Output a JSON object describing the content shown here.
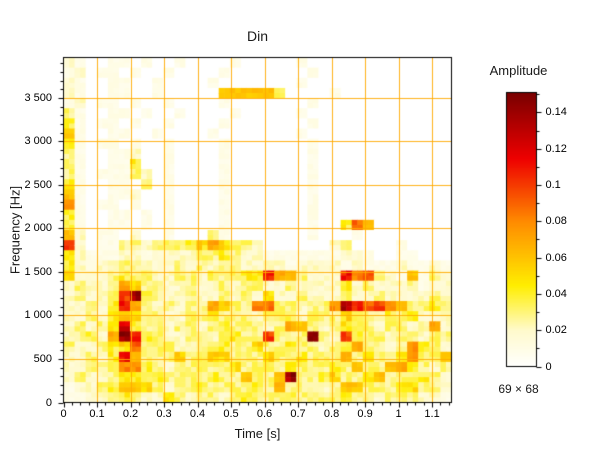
{
  "chart_data": {
    "type": "heatmap",
    "title": "Din",
    "xlabel": "Time [s]",
    "ylabel": "Frequency [Hz]",
    "xlim": [
      0,
      1.158
    ],
    "ylim": [
      0,
      3965
    ],
    "grid": {
      "on": true,
      "color": "#ffaa00"
    },
    "x_axis": {
      "major_tick_values": [
        0,
        0.1,
        0.2,
        0.3,
        0.4,
        0.5,
        0.6,
        0.7,
        0.8,
        0.9,
        1.0,
        1.1
      ],
      "major_tick_labels": [
        "0",
        "0.1",
        "0.2",
        "0.3",
        "0.4",
        "0.5",
        "0.6",
        "0.7",
        "0.8",
        "0.9",
        "1",
        "1.1"
      ],
      "minor_tick_step": 0.025
    },
    "y_axis": {
      "major_tick_values": [
        0,
        500,
        1000,
        1500,
        2000,
        2500,
        3000,
        3500
      ],
      "major_tick_labels": [
        "0",
        "500",
        "1 000",
        "1 500",
        "2 000",
        "2 500",
        "3 000",
        "3 500"
      ],
      "minor_tick_step": 100
    },
    "colorbar": {
      "label": "Amplitude",
      "min": 0,
      "max": 0.151,
      "major_tick_values": [
        0,
        0.02,
        0.04,
        0.06,
        0.08,
        0.1,
        0.12,
        0.14
      ],
      "major_tick_labels": [
        "0",
        "0.02",
        "0.04",
        "0.06",
        "0.08",
        "0.1",
        "0.12",
        "0.14"
      ],
      "minor_tick_step": 0.01
    },
    "colormap_stops": [
      [
        0.0,
        "#ffffff"
      ],
      [
        0.02,
        "#fffacd"
      ],
      [
        0.045,
        "#ffee00"
      ],
      [
        0.08,
        "#ff8c00"
      ],
      [
        0.115,
        "#ee0000"
      ],
      [
        0.151,
        "#7a0000"
      ]
    ],
    "resolution_label": "69 × 68",
    "matrix": {
      "note": "amplitude grid downsampled to 34 rows x 35 cols; hex digit x 0.01 = amplitude; rows listed top (high frequency) to bottom (0 Hz)",
      "rows": 34,
      "cols": 35,
      "value_per_unit": 0.01,
      "rows_hex": [
        "21001101001000010000010000000000000",
        "12011010010000100000001000000000000",
        "21001100100001000000010000000000000",
        "21001100100000666663000010000000000",
        "12011010010000100000001000000000000",
        "31001101001000010000010000000000000",
        "41011010010000100000001000000000000",
        "61001100100001000000010000000000000",
        "41011010010000100000001000000000000",
        "31001120010000100000001000000000000",
        "31001140010000100000001000000000000",
        "31011132010000100000001000000000000",
        "41001103010000100000001000000000000",
        "61001120010000100000001000000000000",
        "81011010010000100000001000000000000",
        "41001101010000100000001000000000000",
        "41001101010000100000001004960000000",
        "62011020010003100000001000100000000",
        "a2011332333457543200000023000010000",
        "52111221222233432211111112210011000",
        "42122332223232332222122221211121121",
        "522234332233243344b763222b8a3216132",
        "23223753322322323322322224232223122",
        "23223ae4322322323252232223223222232",
        "22324b7323233753389332338db9a863343",
        "22324653322334333233423335332434222",
        "23235c43323323433323763235332332372",
        "23427eb43223323433a333e32a433233233",
        "32234593332233433533433234733238432",
        "22324b63335335533353343337353348336",
        "22333884323343353343533343533674323",
        "23223443433334336336e33453346333432",
        "12234665323343333437333236633345332",
        "11223432243233234333433334332333221"
      ]
    }
  }
}
